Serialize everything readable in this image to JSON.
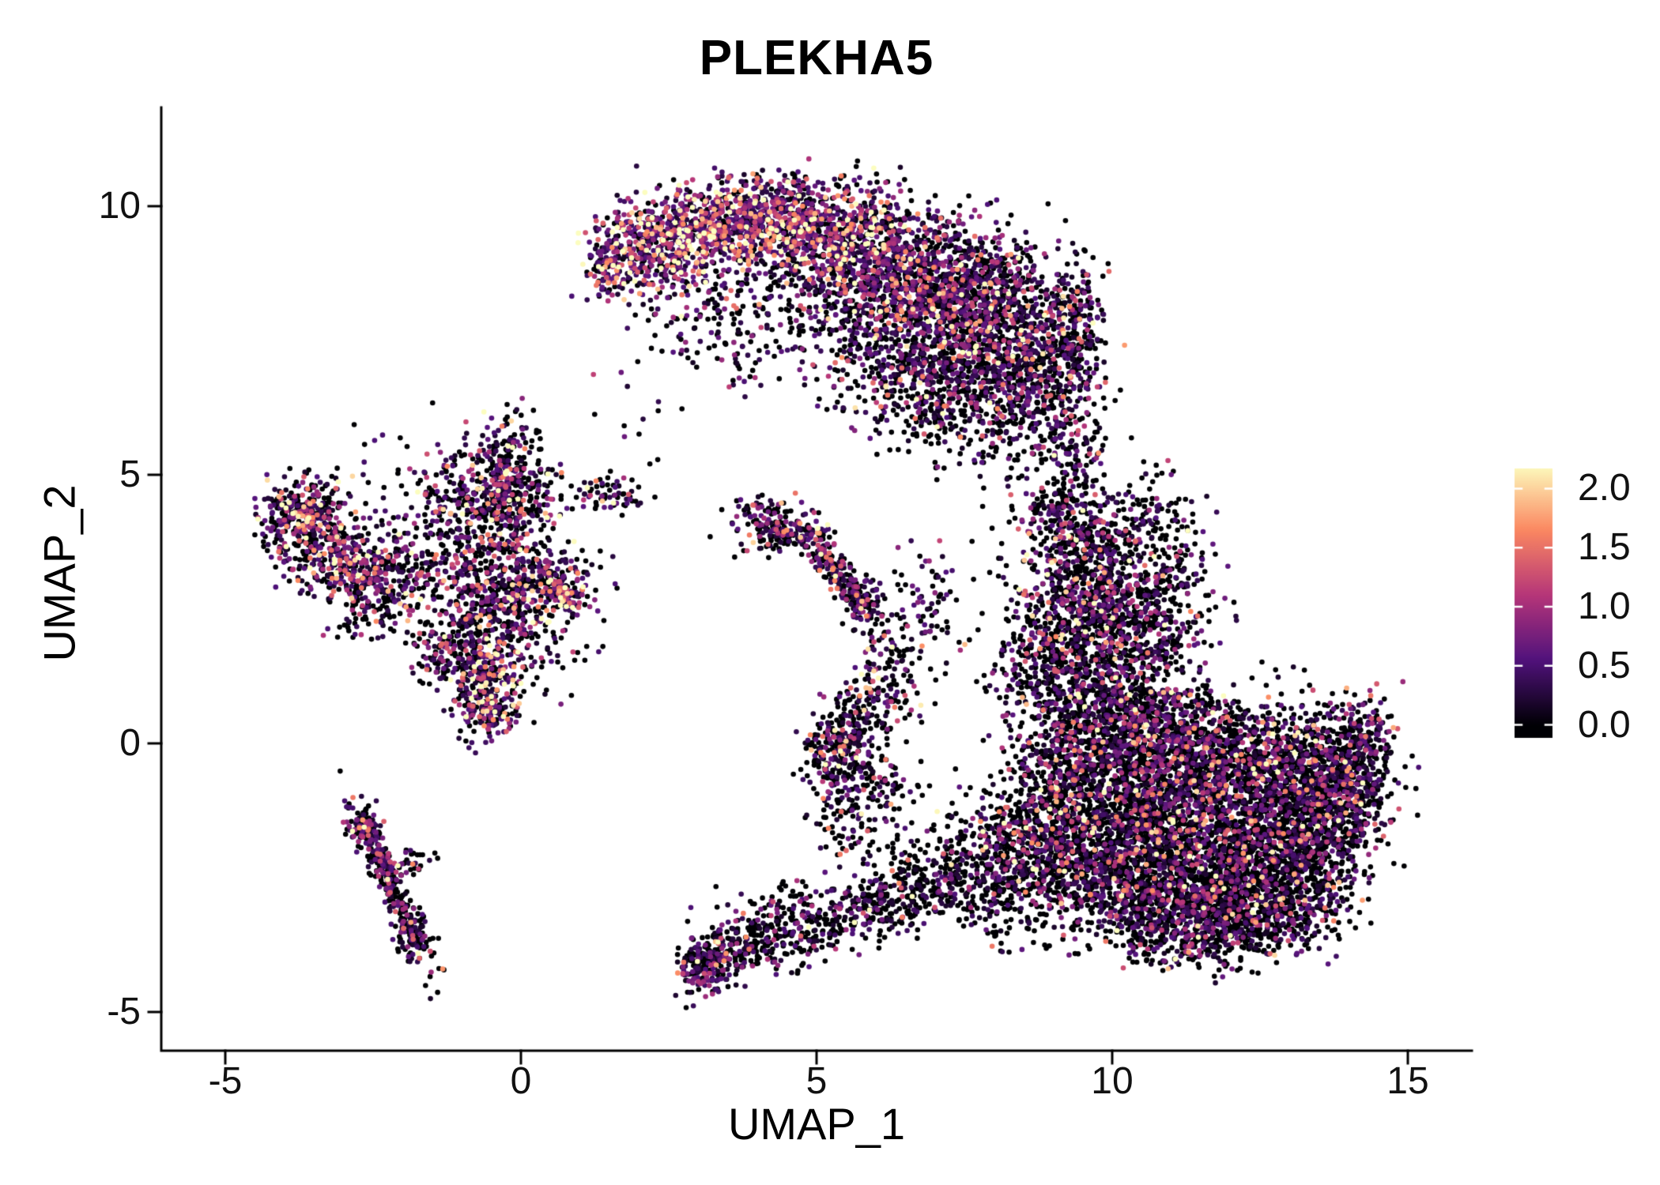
{
  "chart_data": {
    "type": "scatter",
    "title": "PLEKHA5",
    "xlabel": "UMAP_1",
    "ylabel": "UMAP_2",
    "xlim": [
      -6.1,
      16.1
    ],
    "ylim": [
      -5.75,
      11.85
    ],
    "xticks": [
      -5,
      0,
      5,
      10,
      15
    ],
    "xtick_labels": [
      "-5",
      "0",
      "5",
      "10",
      "15"
    ],
    "yticks": [
      -5,
      0,
      5,
      10
    ],
    "ytick_labels": [
      "-5",
      "0",
      "5",
      "10"
    ],
    "grid": false,
    "legend_position": "right",
    "point_radius": 3.3,
    "seed": 20240601,
    "colorbar": {
      "ticks": [
        0,
        0.5,
        1,
        1.5,
        2
      ],
      "tick_labels": [
        "0.0",
        "0.5",
        "1.0",
        "1.5",
        "2.0"
      ],
      "vmin": 0.0,
      "vmax": 2.2,
      "palette": "magma",
      "stops": [
        [
          0,
          "#000004"
        ],
        [
          0.25,
          "#51127c"
        ],
        [
          0.5,
          "#b63679"
        ],
        [
          0.75,
          "#fb8861"
        ],
        [
          1,
          "#fcfdbf"
        ]
      ]
    },
    "cluster_fields": [
      "cx",
      "cy",
      "sx",
      "sy",
      "n",
      "p_zero",
      "expr_scale",
      "rot"
    ],
    "clusters": [
      [
        1.45,
        8.85,
        0.18,
        0.25,
        90,
        0.25,
        0.85,
        0
      ],
      [
        2.1,
        9.3,
        0.45,
        0.4,
        260,
        0.2,
        0.85,
        0
      ],
      [
        2.9,
        9.6,
        0.5,
        0.35,
        320,
        0.18,
        0.9,
        0
      ],
      [
        3.8,
        9.75,
        0.55,
        0.4,
        380,
        0.22,
        0.8,
        0
      ],
      [
        4.8,
        9.65,
        0.6,
        0.45,
        450,
        0.3,
        0.7,
        0
      ],
      [
        5.7,
        9.25,
        0.6,
        0.55,
        500,
        0.35,
        0.65,
        0
      ],
      [
        6.5,
        8.65,
        0.65,
        0.65,
        550,
        0.4,
        0.6,
        0
      ],
      [
        7.3,
        7.95,
        0.6,
        0.7,
        500,
        0.45,
        0.55,
        0
      ],
      [
        8.0,
        7.35,
        0.55,
        0.7,
        400,
        0.5,
        0.5,
        0
      ],
      [
        8.7,
        6.95,
        0.45,
        0.6,
        280,
        0.5,
        0.5,
        0
      ],
      [
        9.3,
        7.3,
        0.3,
        0.7,
        160,
        0.5,
        0.5,
        0
      ],
      [
        9.4,
        8.1,
        0.3,
        0.5,
        120,
        0.45,
        0.55,
        0
      ],
      [
        4.2,
        8.4,
        0.9,
        0.5,
        130,
        0.6,
        0.5,
        0
      ],
      [
        3.3,
        7.7,
        0.7,
        0.45,
        80,
        0.6,
        0.5,
        0
      ],
      [
        5.5,
        7.9,
        0.8,
        0.6,
        160,
        0.55,
        0.5,
        0
      ],
      [
        6.3,
        6.95,
        0.8,
        0.6,
        250,
        0.5,
        0.5,
        0
      ],
      [
        7.2,
        6.4,
        0.6,
        0.5,
        200,
        0.5,
        0.5,
        0
      ],
      [
        8.2,
        6.1,
        0.5,
        0.4,
        100,
        0.55,
        0.5,
        0
      ],
      [
        2.6,
        8.9,
        0.5,
        0.45,
        150,
        0.3,
        0.8,
        0
      ],
      [
        7.6,
        8.8,
        0.5,
        0.5,
        200,
        0.45,
        0.55,
        0
      ],
      [
        8.3,
        8.4,
        0.4,
        0.5,
        150,
        0.45,
        0.5,
        0
      ],
      [
        9.35,
        5.4,
        0.3,
        0.7,
        130,
        0.55,
        0.5,
        0
      ],
      [
        9.1,
        4.4,
        0.35,
        0.5,
        120,
        0.55,
        0.5,
        0
      ],
      [
        9.6,
        3.6,
        0.55,
        0.5,
        350,
        0.55,
        0.5,
        0
      ],
      [
        9.5,
        2.5,
        0.6,
        0.6,
        450,
        0.55,
        0.55,
        0
      ],
      [
        10.3,
        2.0,
        0.6,
        0.6,
        350,
        0.6,
        0.5,
        0
      ],
      [
        10.9,
        2.9,
        0.45,
        0.6,
        180,
        0.6,
        0.5,
        0
      ],
      [
        8.9,
        1.5,
        0.5,
        0.6,
        300,
        0.55,
        0.5,
        0
      ],
      [
        10.6,
        4.1,
        0.5,
        0.55,
        100,
        0.65,
        0.45,
        0
      ],
      [
        8.5,
        5.3,
        0.4,
        0.5,
        50,
        0.65,
        0.45,
        0
      ],
      [
        9.9,
        0.5,
        0.6,
        0.6,
        450,
        0.6,
        0.5,
        0
      ],
      [
        10.8,
        0.2,
        0.7,
        0.6,
        600,
        0.62,
        0.5,
        0
      ],
      [
        11.8,
        -0.3,
        0.8,
        0.6,
        700,
        0.62,
        0.5,
        0
      ],
      [
        12.8,
        -0.7,
        0.7,
        0.6,
        600,
        0.62,
        0.5,
        0
      ],
      [
        13.7,
        -0.5,
        0.5,
        0.6,
        380,
        0.62,
        0.5,
        0
      ],
      [
        14.25,
        0.0,
        0.25,
        0.45,
        160,
        0.55,
        0.5,
        0
      ],
      [
        10.3,
        -1.2,
        0.7,
        0.6,
        600,
        0.62,
        0.5,
        0
      ],
      [
        11.3,
        -1.8,
        0.8,
        0.6,
        700,
        0.62,
        0.5,
        0
      ],
      [
        12.4,
        -2.2,
        0.7,
        0.6,
        600,
        0.62,
        0.5,
        0
      ],
      [
        13.3,
        -1.8,
        0.5,
        0.5,
        350,
        0.62,
        0.5,
        0
      ],
      [
        10.0,
        -2.5,
        0.6,
        0.5,
        450,
        0.62,
        0.5,
        0
      ],
      [
        11.0,
        -3.0,
        0.7,
        0.5,
        500,
        0.62,
        0.5,
        0
      ],
      [
        12.0,
        -3.2,
        0.6,
        0.4,
        350,
        0.62,
        0.5,
        0
      ],
      [
        9.2,
        -0.5,
        0.5,
        0.7,
        400,
        0.6,
        0.5,
        0
      ],
      [
        9.0,
        -1.8,
        0.5,
        0.6,
        350,
        0.6,
        0.5,
        0
      ],
      [
        11.5,
        -3.7,
        0.8,
        0.3,
        180,
        0.6,
        0.5,
        0
      ],
      [
        13.0,
        -3.0,
        0.5,
        0.4,
        250,
        0.62,
        0.5,
        0
      ],
      [
        14.0,
        -1.2,
        0.35,
        0.5,
        200,
        0.6,
        0.5,
        0
      ],
      [
        8.2,
        -1.9,
        0.5,
        0.5,
        250,
        0.6,
        0.5,
        0
      ],
      [
        7.4,
        -2.3,
        0.5,
        0.4,
        180,
        0.6,
        0.5,
        0
      ],
      [
        6.6,
        -2.7,
        0.5,
        0.35,
        140,
        0.6,
        0.5,
        0
      ],
      [
        8.3,
        -3.0,
        0.5,
        0.4,
        150,
        0.6,
        0.5,
        0
      ],
      [
        3.05,
        -4.15,
        0.22,
        0.28,
        160,
        0.5,
        0.55,
        0
      ],
      [
        3.6,
        -3.85,
        0.35,
        0.25,
        150,
        0.55,
        0.5,
        0
      ],
      [
        4.4,
        -3.6,
        0.45,
        0.25,
        140,
        0.6,
        0.5,
        0
      ],
      [
        5.3,
        -3.3,
        0.5,
        0.25,
        120,
        0.6,
        0.5,
        0
      ],
      [
        6.0,
        -3.0,
        0.4,
        0.25,
        90,
        0.6,
        0.5,
        0
      ],
      [
        4.5,
        -3.0,
        0.6,
        0.3,
        60,
        0.65,
        0.45,
        0
      ],
      [
        5.35,
        -0.2,
        0.3,
        0.45,
        260,
        0.5,
        0.6,
        0
      ],
      [
        5.85,
        0.6,
        0.3,
        0.4,
        130,
        0.55,
        0.55,
        0
      ],
      [
        6.3,
        1.5,
        0.3,
        0.5,
        90,
        0.6,
        0.5,
        0
      ],
      [
        6.9,
        2.6,
        0.25,
        0.7,
        70,
        0.6,
        0.5,
        0
      ],
      [
        6.1,
        -0.9,
        0.4,
        0.4,
        90,
        0.6,
        0.5,
        0
      ],
      [
        5.6,
        -1.6,
        0.3,
        0.5,
        60,
        0.6,
        0.5,
        0
      ],
      [
        4.15,
        4.05,
        0.3,
        0.28,
        140,
        0.5,
        0.55,
        0
      ],
      [
        4.6,
        3.95,
        0.25,
        0.15,
        60,
        0.5,
        0.5,
        0
      ],
      [
        5.35,
        3.2,
        0.55,
        0.13,
        200,
        0.45,
        0.6,
        -1.04
      ],
      [
        5.75,
        2.65,
        0.2,
        0.25,
        80,
        0.5,
        0.55,
        0
      ],
      [
        -3.6,
        4.2,
        0.32,
        0.35,
        220,
        0.4,
        0.7,
        0
      ],
      [
        -3.1,
        3.5,
        0.4,
        0.45,
        260,
        0.4,
        0.7,
        0
      ],
      [
        -2.4,
        3.1,
        0.4,
        0.4,
        160,
        0.45,
        0.65,
        0
      ],
      [
        -3.9,
        4.35,
        0.2,
        0.25,
        90,
        0.35,
        0.8,
        0
      ],
      [
        -1.7,
        3.3,
        0.35,
        0.35,
        80,
        0.55,
        0.5,
        0
      ],
      [
        -0.7,
        4.5,
        0.6,
        0.5,
        260,
        0.5,
        0.6,
        0
      ],
      [
        -0.1,
        4.7,
        0.4,
        0.45,
        150,
        0.5,
        0.6,
        0
      ],
      [
        -0.4,
        3.3,
        0.55,
        0.5,
        280,
        0.45,
        0.65,
        0
      ],
      [
        0.5,
        3.0,
        0.35,
        0.35,
        150,
        0.4,
        0.7,
        0
      ],
      [
        0.75,
        2.8,
        0.18,
        0.18,
        90,
        0.2,
        1.0,
        0
      ],
      [
        -0.9,
        2.2,
        0.45,
        0.5,
        200,
        0.5,
        0.6,
        0
      ],
      [
        -0.6,
        1.1,
        0.3,
        0.45,
        260,
        0.35,
        0.8,
        0
      ],
      [
        -1.2,
        1.6,
        0.3,
        0.3,
        100,
        0.5,
        0.6,
        0
      ],
      [
        0.2,
        1.9,
        0.5,
        0.4,
        90,
        0.6,
        0.5,
        0
      ],
      [
        -0.3,
        5.5,
        0.4,
        0.35,
        70,
        0.55,
        0.5,
        0
      ],
      [
        1.4,
        4.6,
        0.35,
        0.18,
        70,
        0.5,
        0.55,
        0
      ],
      [
        -4.1,
        3.9,
        0.15,
        0.3,
        50,
        0.4,
        0.7,
        0
      ],
      [
        -2.6,
        2.5,
        0.3,
        0.3,
        80,
        0.5,
        0.55,
        0
      ],
      [
        -0.2,
        2.6,
        0.3,
        0.3,
        90,
        0.45,
        0.6,
        0
      ],
      [
        -1.5,
        4.6,
        0.8,
        0.6,
        80,
        0.6,
        0.5,
        0
      ],
      [
        -0.5,
        0.55,
        0.25,
        0.2,
        60,
        0.4,
        0.7,
        0
      ],
      [
        -0.35,
        5.0,
        0.12,
        0.45,
        80,
        0.45,
        0.6,
        0
      ],
      [
        -2.2,
        -2.6,
        0.75,
        0.12,
        280,
        0.5,
        0.5,
        -1.17
      ],
      [
        -2.65,
        -1.55,
        0.15,
        0.18,
        70,
        0.45,
        0.6,
        0
      ],
      [
        -1.8,
        -3.6,
        0.13,
        0.22,
        60,
        0.5,
        0.5,
        0
      ],
      [
        -2.0,
        -2.25,
        0.22,
        0.1,
        50,
        0.5,
        0.5,
        0.35
      ],
      [
        2.1,
        6.1,
        0.5,
        0.4,
        12,
        0.7,
        0.5,
        0
      ],
      [
        3.6,
        6.9,
        0.4,
        0.3,
        14,
        0.6,
        0.5,
        0
      ]
    ]
  }
}
